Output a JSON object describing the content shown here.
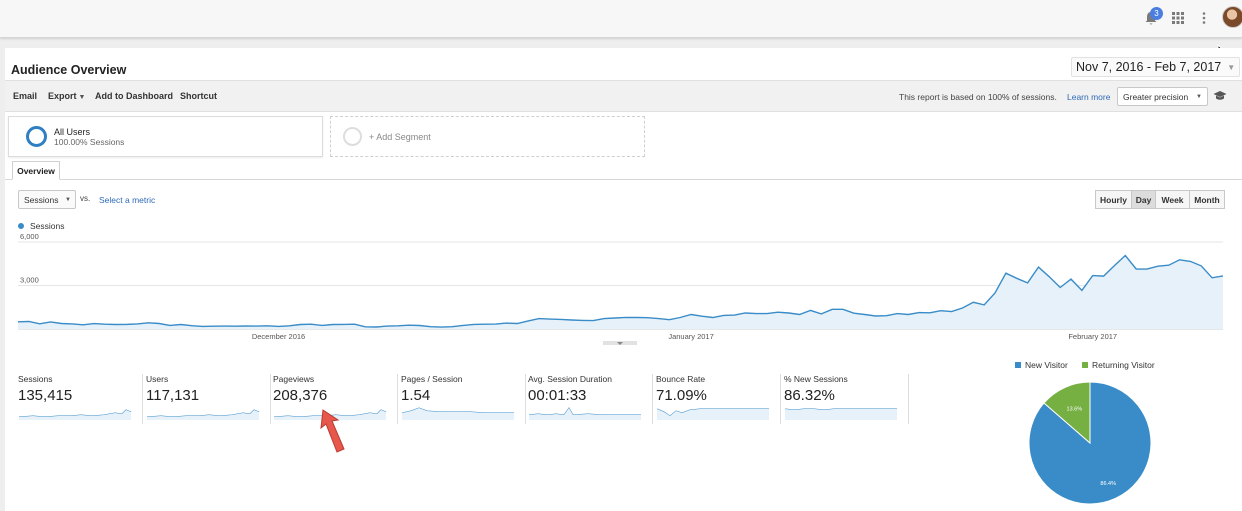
{
  "topbar": {
    "notification_count": "3",
    "icons": [
      "bell-icon",
      "apps-grid-icon",
      "more-vert-icon",
      "avatar"
    ]
  },
  "report": {
    "title": "Audience Overview",
    "date_range": "Nov 7, 2016 - Feb 7, 2017"
  },
  "toolbar": {
    "email": "Email",
    "export": "Export",
    "add_to_dashboard": "Add to Dashboard",
    "shortcut": "Shortcut",
    "note": "This report is based on 100% of sessions.",
    "learn_more": "Learn more",
    "precision": "Greater precision"
  },
  "segments": {
    "all_users": {
      "name": "All Users",
      "sub": "100.00% Sessions"
    },
    "add_segment": "+ Add Segment"
  },
  "tabs": {
    "overview": "Overview"
  },
  "chart_controls": {
    "metric": "Sessions",
    "vs": "vs.",
    "select_metric": "Select a metric",
    "granularity": [
      "Hourly",
      "Day",
      "Week",
      "Month"
    ],
    "active_granularity": "Day"
  },
  "colors": {
    "series": "#3a8cc8",
    "area": "#e6f1f9",
    "new_visitor": "#3a8cc8",
    "returning_visitor": "#76b043",
    "link": "#2e6ab8"
  },
  "chart_data": [
    {
      "type": "area",
      "series": [
        {
          "name": "Sessions",
          "values": [
            500,
            520,
            360,
            490,
            380,
            350,
            290,
            370,
            330,
            310,
            320,
            350,
            430,
            380,
            250,
            310,
            230,
            180,
            190,
            200,
            190,
            210,
            200,
            220,
            180,
            220,
            310,
            330,
            250,
            310,
            320,
            330,
            150,
            140,
            200,
            220,
            260,
            240,
            160,
            130,
            160,
            250,
            320,
            330,
            340,
            410,
            380,
            560,
            720,
            680,
            660,
            620,
            590,
            580,
            720,
            760,
            800,
            790,
            780,
            720,
            640,
            790,
            1000,
            880,
            790,
            940,
            960,
            1100,
            1060,
            1060,
            1160,
            1100,
            1000,
            1280,
            1040,
            1360,
            1360,
            1090,
            1000,
            900,
            920,
            1060,
            1000,
            1130,
            1120,
            1260,
            1200,
            1450,
            1840,
            1660,
            2480,
            3850,
            3500,
            3180,
            4270,
            3600,
            2860,
            3440,
            2660,
            3680,
            3650,
            4370,
            5070,
            4140,
            4130,
            4330,
            4400,
            4770,
            4660,
            4350,
            3530,
            3660
          ]
        }
      ],
      "ylim": [
        0,
        6000
      ],
      "yticks": [
        "6,000",
        "3,000"
      ],
      "xticks": [
        "December 2016",
        "January 2017",
        "February 2017"
      ],
      "grid": true
    },
    {
      "type": "pie",
      "categories": [
        "New Visitor",
        "Returning Visitor"
      ],
      "values": [
        86.4,
        13.6
      ],
      "data_labels": [
        "86.4%",
        "13.6%"
      ],
      "legend": "top"
    }
  ],
  "metrics": [
    {
      "label": "Sessions",
      "value": "135,415"
    },
    {
      "label": "Users",
      "value": "117,131"
    },
    {
      "label": "Pageviews",
      "value": "208,376"
    },
    {
      "label": "Pages / Session",
      "value": "1.54"
    },
    {
      "label": "Avg. Session Duration",
      "value": "00:01:33"
    },
    {
      "label": "Bounce Rate",
      "value": "71.09%"
    },
    {
      "label": "% New Sessions",
      "value": "86.32%"
    }
  ]
}
